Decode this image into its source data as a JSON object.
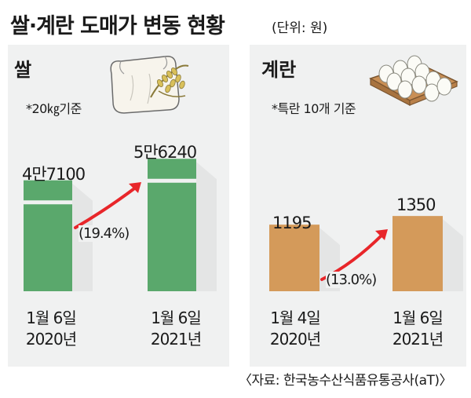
{
  "title": "쌀·계란 도매가 변동 현황",
  "unit": "(단위: 원)",
  "source": "〈자료: 한국농수산식품유통공사(aT)〉",
  "colors": {
    "rice_bar": "#5aa86c",
    "egg_bar": "#d49a5a",
    "arrow": "#e8262a",
    "panel": "#f0f1f1"
  },
  "icons": [
    "rice-sack-icon",
    "egg-tray-icon"
  ],
  "chart_data": [
    {
      "type": "bar",
      "title": "쌀",
      "subtitle": "*20㎏기준",
      "categories": [
        "1월 6일\n2020년",
        "1월 6일\n2021년"
      ],
      "values": [
        47100,
        56240
      ],
      "value_labels": [
        "4만7100",
        "5만6240"
      ],
      "change_label": "(19.4%)",
      "color": "#5aa86c"
    },
    {
      "type": "bar",
      "title": "계란",
      "subtitle": "*특란 10개 기준",
      "categories": [
        "1월 4일\n2020년",
        "1월 6일\n2021년"
      ],
      "values": [
        1195,
        1350
      ],
      "value_labels": [
        "1195",
        "1350"
      ],
      "change_label": "(13.0%)",
      "color": "#d49a5a"
    }
  ]
}
